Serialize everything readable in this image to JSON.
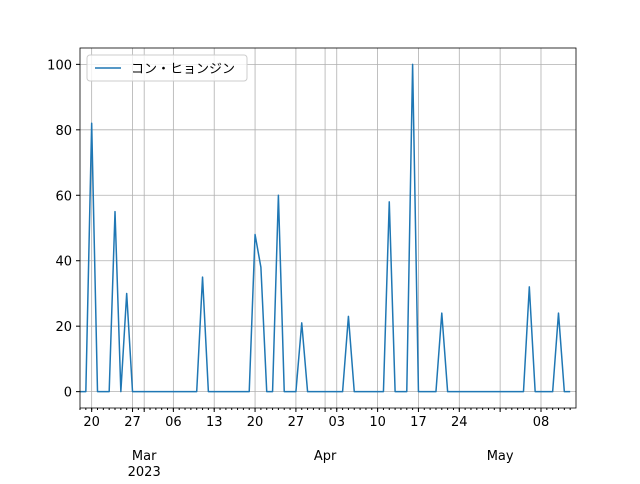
{
  "chart_data": {
    "type": "line",
    "x": [
      "2023-02-18",
      "2023-02-19",
      "2023-02-20",
      "2023-02-21",
      "2023-02-22",
      "2023-02-23",
      "2023-02-24",
      "2023-02-25",
      "2023-02-26",
      "2023-02-27",
      "2023-02-28",
      "2023-03-01",
      "2023-03-02",
      "2023-03-03",
      "2023-03-04",
      "2023-03-05",
      "2023-03-06",
      "2023-03-07",
      "2023-03-08",
      "2023-03-09",
      "2023-03-10",
      "2023-03-11",
      "2023-03-12",
      "2023-03-13",
      "2023-03-14",
      "2023-03-15",
      "2023-03-16",
      "2023-03-17",
      "2023-03-18",
      "2023-03-19",
      "2023-03-20",
      "2023-03-21",
      "2023-03-22",
      "2023-03-23",
      "2023-03-24",
      "2023-03-25",
      "2023-03-26",
      "2023-03-27",
      "2023-03-28",
      "2023-03-29",
      "2023-03-30",
      "2023-03-31",
      "2023-04-01",
      "2023-04-02",
      "2023-04-03",
      "2023-04-04",
      "2023-04-05",
      "2023-04-06",
      "2023-04-07",
      "2023-04-08",
      "2023-04-09",
      "2023-04-10",
      "2023-04-11",
      "2023-04-12",
      "2023-04-13",
      "2023-04-14",
      "2023-04-15",
      "2023-04-16",
      "2023-04-17",
      "2023-04-18",
      "2023-04-19",
      "2023-04-20",
      "2023-04-21",
      "2023-04-22",
      "2023-04-23",
      "2023-04-24",
      "2023-04-25",
      "2023-04-26",
      "2023-04-27",
      "2023-04-28",
      "2023-04-29",
      "2023-04-30",
      "2023-05-01",
      "2023-05-02",
      "2023-05-03",
      "2023-05-04",
      "2023-05-05",
      "2023-05-06",
      "2023-05-07",
      "2023-05-08",
      "2023-05-09",
      "2023-05-10",
      "2023-05-11",
      "2023-05-12",
      "2023-05-13"
    ],
    "series": [
      {
        "name": "コン・ヒョンジン",
        "color": "#1f77b4",
        "values": [
          0,
          0,
          82,
          0,
          0,
          0,
          55,
          0,
          30,
          0,
          0,
          0,
          0,
          0,
          0,
          0,
          0,
          0,
          0,
          0,
          0,
          35,
          0,
          0,
          0,
          0,
          0,
          0,
          0,
          0,
          48,
          38,
          0,
          0,
          60,
          0,
          0,
          0,
          21,
          0,
          0,
          0,
          0,
          0,
          0,
          0,
          23,
          0,
          0,
          0,
          0,
          0,
          0,
          58,
          0,
          0,
          0,
          100,
          0,
          0,
          0,
          0,
          24,
          0,
          0,
          0,
          0,
          0,
          0,
          0,
          0,
          0,
          0,
          0,
          0,
          0,
          0,
          32,
          0,
          0,
          0,
          0,
          24,
          0,
          0
        ]
      }
    ],
    "xlim": [
      "2023-02-18",
      "2023-05-13"
    ],
    "xticks": [
      {
        "value": "2023-02-20",
        "label": "20"
      },
      {
        "value": "2023-02-27",
        "label": "27"
      },
      {
        "value": "2023-03-06",
        "label": "06"
      },
      {
        "value": "2023-03-13",
        "label": "13"
      },
      {
        "value": "2023-03-20",
        "label": "20"
      },
      {
        "value": "2023-03-27",
        "label": "27"
      },
      {
        "value": "2023-04-03",
        "label": "03"
      },
      {
        "value": "2023-04-10",
        "label": "10"
      },
      {
        "value": "2023-04-17",
        "label": "17"
      },
      {
        "value": "2023-04-24",
        "label": "24"
      },
      {
        "value": "2023-05-08",
        "label": "08"
      }
    ],
    "month_ticks": [
      {
        "value": "2023-03-01",
        "label": "Mar"
      },
      {
        "value": "2023-04-01",
        "label": "Apr"
      },
      {
        "value": "2023-05-01",
        "label": "May"
      }
    ],
    "year_label": "2023",
    "ylim": [
      -5,
      105
    ],
    "yticks": [
      0,
      20,
      40,
      60,
      80,
      100
    ],
    "grid": true,
    "legend": "upper left"
  }
}
